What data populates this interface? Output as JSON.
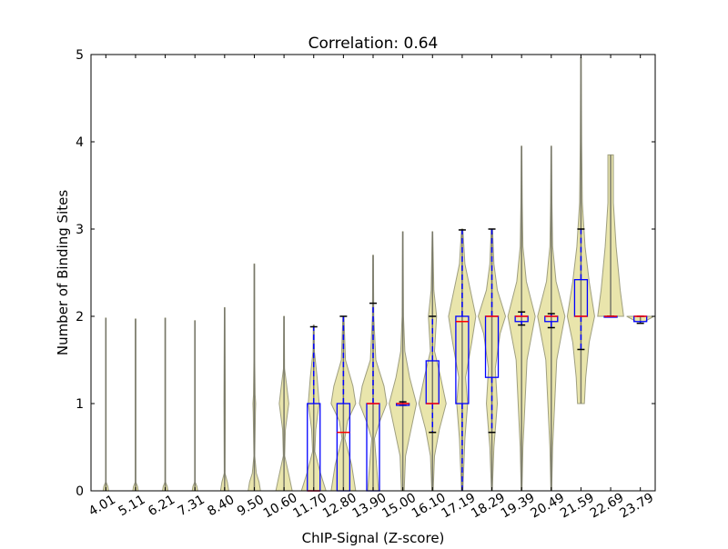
{
  "chart_data": {
    "type": "violin+box",
    "title": "Correlation: 0.64",
    "xlabel": "ChIP-Signal (Z-score)",
    "ylabel": "Number of Binding Sites",
    "ylim": [
      0,
      5
    ],
    "yticks": [
      "0",
      "1",
      "2",
      "3",
      "4",
      "5"
    ],
    "categories": [
      "4.01",
      "5.11",
      "6.21",
      "7.31",
      "8.40",
      "9.50",
      "10.60",
      "11.70",
      "12.80",
      "13.90",
      "15.00",
      "16.10",
      "17.19",
      "18.29",
      "19.39",
      "20.49",
      "21.59",
      "22.69",
      "23.79"
    ],
    "colors": {
      "violin": "#e8e4a8",
      "violin_edge": "#9a9a7a",
      "box": "#0000ff",
      "median": "#ff0000",
      "whisker_cap": "#000000"
    },
    "boxes": [
      {
        "q1": 0,
        "median": 0,
        "q3": 0,
        "whislo": 0,
        "whishi": 0
      },
      {
        "q1": 0,
        "median": 0,
        "q3": 0,
        "whislo": 0,
        "whishi": 0
      },
      {
        "q1": 0,
        "median": 0,
        "q3": 0,
        "whislo": 0,
        "whishi": 0
      },
      {
        "q1": 0,
        "median": 0,
        "q3": 0,
        "whislo": 0,
        "whishi": 0
      },
      {
        "q1": 0,
        "median": 0,
        "q3": 0,
        "whislo": 0,
        "whishi": 0
      },
      {
        "q1": 0,
        "median": 0,
        "q3": 0,
        "whislo": 0,
        "whishi": 0
      },
      {
        "q1": 0,
        "median": 0,
        "q3": 0,
        "whislo": 0,
        "whishi": 0
      },
      {
        "q1": 0,
        "median": 0,
        "q3": 1,
        "whislo": 0,
        "whishi": 1.88
      },
      {
        "q1": 0,
        "median": 0.67,
        "q3": 1,
        "whislo": 0,
        "whishi": 2.0
      },
      {
        "q1": 0,
        "median": 1,
        "q3": 1,
        "whislo": 0,
        "whishi": 2.15
      },
      {
        "q1": 0.98,
        "median": 1,
        "q3": 1,
        "whislo": 0.98,
        "whishi": 1.02
      },
      {
        "q1": 1,
        "median": 1,
        "q3": 1.49,
        "whislo": 0.67,
        "whishi": 2.0
      },
      {
        "q1": 1,
        "median": 1.94,
        "q3": 2,
        "whislo": 0,
        "whishi": 2.99
      },
      {
        "q1": 1.3,
        "median": 2,
        "q3": 2,
        "whislo": 0.67,
        "whishi": 3.0
      },
      {
        "q1": 1.94,
        "median": 2,
        "q3": 2,
        "whislo": 1.9,
        "whishi": 2.05
      },
      {
        "q1": 1.94,
        "median": 2,
        "q3": 2,
        "whislo": 1.87,
        "whishi": 2.03
      },
      {
        "q1": 2,
        "median": 2,
        "q3": 2.42,
        "whislo": 1.62,
        "whishi": 3.0
      },
      {
        "q1": 2,
        "median": 2,
        "q3": 2,
        "whislo": 2,
        "whishi": 2
      },
      {
        "q1": 1.94,
        "median": 2,
        "q3": 2,
        "whislo": 1.92,
        "whishi": 2
      }
    ],
    "violin_density": [
      [
        [
          0,
          0.2
        ],
        [
          0.05,
          0.15
        ],
        [
          0.1,
          0.02
        ],
        [
          1.98,
          0.02
        ]
      ],
      [
        [
          0,
          0.2
        ],
        [
          0.05,
          0.15
        ],
        [
          0.1,
          0.02
        ],
        [
          1.97,
          0.02
        ]
      ],
      [
        [
          0,
          0.2
        ],
        [
          0.05,
          0.15
        ],
        [
          0.1,
          0.02
        ],
        [
          1.98,
          0.02
        ]
      ],
      [
        [
          0,
          0.2
        ],
        [
          0.05,
          0.15
        ],
        [
          0.1,
          0.02
        ],
        [
          1.95,
          0.02
        ]
      ],
      [
        [
          0,
          0.3
        ],
        [
          0.1,
          0.2
        ],
        [
          0.2,
          0.03
        ],
        [
          1,
          0.05
        ],
        [
          2.1,
          0.02
        ]
      ],
      [
        [
          0,
          0.45
        ],
        [
          0.1,
          0.35
        ],
        [
          0.2,
          0.15
        ],
        [
          0.4,
          0.03
        ],
        [
          0.9,
          0.08
        ],
        [
          1,
          0.1
        ],
        [
          1.1,
          0.06
        ],
        [
          1.5,
          0.03
        ],
        [
          2.6,
          0.02
        ]
      ],
      [
        [
          0,
          0.6
        ],
        [
          0.15,
          0.4
        ],
        [
          0.4,
          0.05
        ],
        [
          0.7,
          0.1
        ],
        [
          1,
          0.35
        ],
        [
          1.2,
          0.2
        ],
        [
          1.4,
          0.04
        ],
        [
          2,
          0.02
        ]
      ],
      [
        [
          0,
          0.9
        ],
        [
          0.2,
          0.5
        ],
        [
          0.45,
          0.08
        ],
        [
          0.7,
          0.15
        ],
        [
          1,
          0.4
        ],
        [
          1.3,
          0.25
        ],
        [
          1.6,
          0.05
        ],
        [
          1.9,
          0.03
        ]
      ],
      [
        [
          0,
          0.9
        ],
        [
          0.3,
          0.6
        ],
        [
          0.6,
          0.1
        ],
        [
          0.8,
          0.3
        ],
        [
          1,
          0.9
        ],
        [
          1.2,
          0.7
        ],
        [
          1.5,
          0.15
        ],
        [
          2,
          0.04
        ]
      ],
      [
        [
          0,
          0.4
        ],
        [
          0.3,
          0.25
        ],
        [
          0.6,
          0.1
        ],
        [
          0.8,
          0.5
        ],
        [
          1,
          1
        ],
        [
          1.2,
          0.8
        ],
        [
          1.5,
          0.2
        ],
        [
          2,
          0.05
        ],
        [
          2.7,
          0.02
        ]
      ],
      [
        [
          0,
          0.1
        ],
        [
          0.4,
          0.2
        ],
        [
          0.7,
          0.6
        ],
        [
          1,
          1
        ],
        [
          1.3,
          0.5
        ],
        [
          1.6,
          0.15
        ],
        [
          2,
          0.05
        ],
        [
          2.97,
          0.02
        ]
      ],
      [
        [
          0,
          0.05
        ],
        [
          0.4,
          0.15
        ],
        [
          0.7,
          0.5
        ],
        [
          1,
          1
        ],
        [
          1.3,
          0.6
        ],
        [
          1.6,
          0.15
        ],
        [
          2,
          0.3
        ],
        [
          2.3,
          0.1
        ],
        [
          2.97,
          0.02
        ]
      ],
      [
        [
          0,
          0.05
        ],
        [
          0.6,
          0.2
        ],
        [
          1,
          0.4
        ],
        [
          1.3,
          0.25
        ],
        [
          1.7,
          0.7
        ],
        [
          2,
          1
        ],
        [
          2.3,
          0.6
        ],
        [
          2.6,
          0.2
        ],
        [
          3,
          0.05
        ]
      ],
      [
        [
          0,
          0.03
        ],
        [
          0.5,
          0.15
        ],
        [
          1,
          0.4
        ],
        [
          1.4,
          0.25
        ],
        [
          1.8,
          0.6
        ],
        [
          2,
          1
        ],
        [
          2.3,
          0.4
        ],
        [
          2.6,
          0.15
        ],
        [
          3,
          0.05
        ]
      ],
      [
        [
          0,
          0.03
        ],
        [
          0.5,
          0.1
        ],
        [
          1,
          0.25
        ],
        [
          1.5,
          0.4
        ],
        [
          2,
          1
        ],
        [
          2.4,
          0.35
        ],
        [
          2.8,
          0.1
        ],
        [
          3.3,
          0.05
        ],
        [
          3.95,
          0.02
        ]
      ],
      [
        [
          0,
          0.03
        ],
        [
          0.5,
          0.1
        ],
        [
          1,
          0.25
        ],
        [
          1.5,
          0.4
        ],
        [
          2,
          1
        ],
        [
          2.4,
          0.35
        ],
        [
          2.8,
          0.1
        ],
        [
          3.3,
          0.05
        ],
        [
          3.95,
          0.02
        ]
      ],
      [
        [
          1,
          0.25
        ],
        [
          1.3,
          0.35
        ],
        [
          1.7,
          0.6
        ],
        [
          2,
          1
        ],
        [
          2.4,
          0.6
        ],
        [
          2.8,
          0.3
        ],
        [
          3.3,
          0.1
        ],
        [
          4,
          0.05
        ],
        [
          4.97,
          0.02
        ]
      ],
      [
        [
          2,
          0.95
        ],
        [
          2.3,
          0.7
        ],
        [
          2.8,
          0.4
        ],
        [
          3.3,
          0.2
        ],
        [
          3.85,
          0.2
        ]
      ],
      [
        [
          1.94,
          0.3
        ],
        [
          2,
          1
        ]
      ]
    ]
  }
}
